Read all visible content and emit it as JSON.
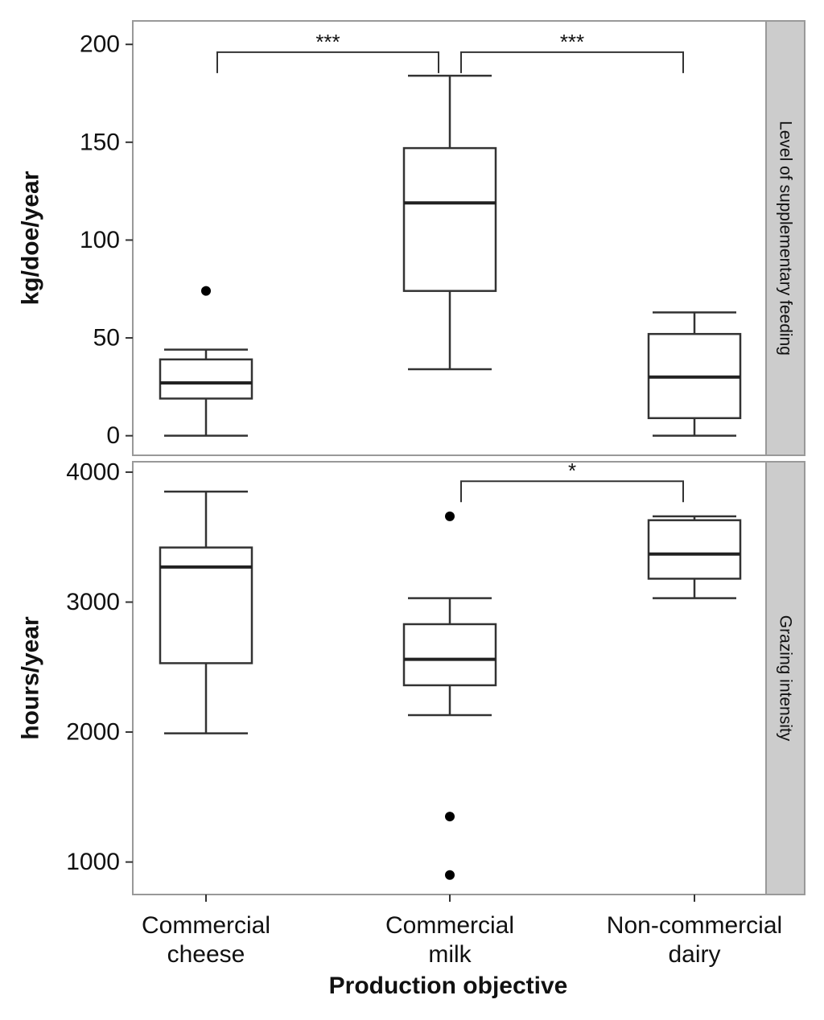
{
  "chart_data": {
    "type": "boxplot",
    "xlabel": "Production objective",
    "categories": [
      [
        "Commercial",
        "cheese"
      ],
      [
        "Commercial",
        "milk"
      ],
      [
        "Non-commercial",
        "dairy"
      ]
    ],
    "panels": [
      {
        "strip_label": "Level of supplementary feeding",
        "ylabel": "kg/doe/year",
        "ylim": [
          -10,
          212
        ],
        "yticks": [
          0,
          50,
          100,
          150,
          200
        ],
        "boxes": [
          {
            "min": 0,
            "q1": 19,
            "median": 27,
            "q3": 39,
            "max": 44,
            "outliers": [
              74
            ]
          },
          {
            "min": 34,
            "q1": 74,
            "median": 119,
            "q3": 147,
            "max": 184,
            "outliers": []
          },
          {
            "min": 0,
            "q1": 9,
            "median": 30,
            "q3": 52,
            "max": 63,
            "outliers": []
          }
        ],
        "significance": [
          {
            "from": 0,
            "to": 1,
            "label": "***",
            "y": 196
          },
          {
            "from": 1,
            "to": 2,
            "label": "***",
            "y": 196
          }
        ]
      },
      {
        "strip_label": "Grazing intensity",
        "ylabel": "hours/year",
        "ylim": [
          750,
          4080
        ],
        "yticks": [
          1000,
          2000,
          3000,
          4000
        ],
        "boxes": [
          {
            "min": 1990,
            "q1": 2530,
            "median": 3270,
            "q3": 3420,
            "max": 3850,
            "outliers": []
          },
          {
            "min": 2130,
            "q1": 2360,
            "median": 2560,
            "q3": 2830,
            "max": 3030,
            "outliers": [
              3660,
              1350,
              900
            ]
          },
          {
            "min": 3030,
            "q1": 3180,
            "median": 3370,
            "q3": 3630,
            "max": 3660,
            "outliers": []
          }
        ],
        "significance": [
          {
            "from": 1,
            "to": 2,
            "label": "*",
            "y": 3930
          }
        ]
      }
    ]
  }
}
